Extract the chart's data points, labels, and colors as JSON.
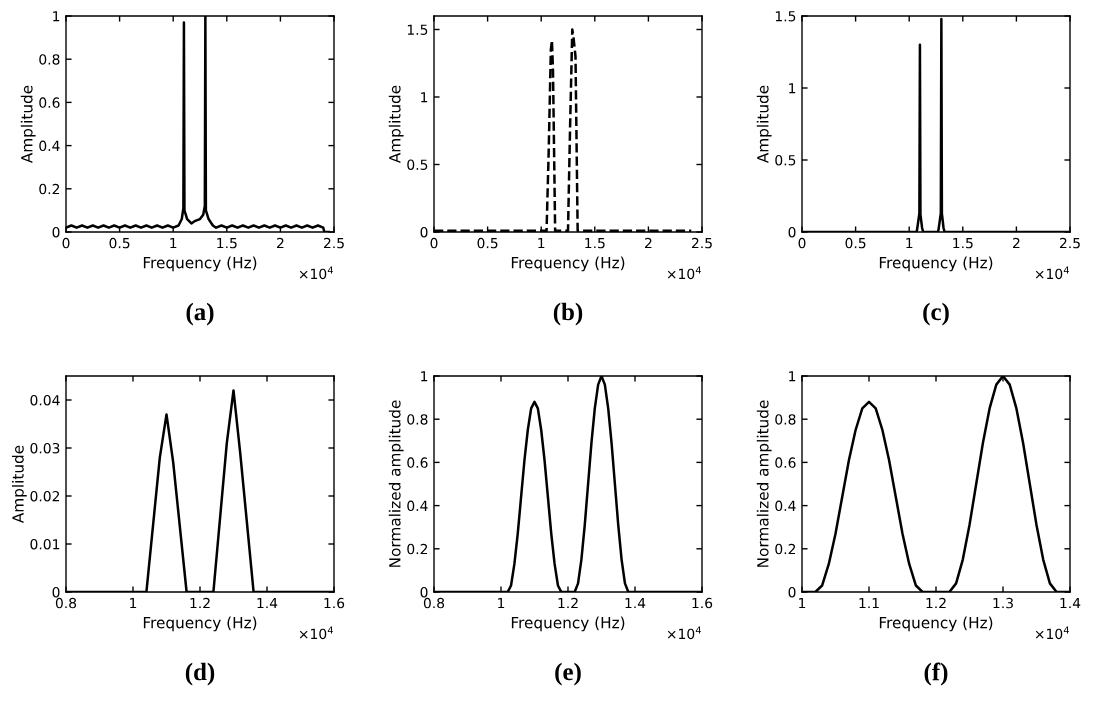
{
  "chart_data": [
    {
      "type": "line",
      "xlabel": "Frequency (Hz)",
      "ylabel": "Amplitude",
      "annotations": [
        "×10$^{4}$",
        "(a)"
      ],
      "xlim": [
        0,
        2.5
      ],
      "ylim": [
        0,
        1
      ],
      "xticks": [
        0,
        0.5,
        1,
        1.5,
        2,
        2.5
      ],
      "yticks": [
        0,
        0.2,
        0.4,
        0.6,
        0.8,
        1
      ],
      "grid": false,
      "marker": "none",
      "line_style": "solid",
      "series": [
        {
          "color": "#000000",
          "x": [
            0,
            0.05,
            0.1,
            0.15,
            0.2,
            0.25,
            0.3,
            0.35,
            0.4,
            0.45,
            0.5,
            0.55,
            0.6,
            0.65,
            0.7,
            0.75,
            0.8,
            0.85,
            0.9,
            0.95,
            1.0,
            1.05,
            1.08,
            1.095,
            1.1,
            1.105,
            1.13,
            1.17,
            1.2,
            1.25,
            1.28,
            1.295,
            1.3,
            1.305,
            1.33,
            1.37,
            1.4,
            1.45,
            1.5,
            1.55,
            1.6,
            1.65,
            1.7,
            1.75,
            1.8,
            1.85,
            1.9,
            1.95,
            2.0,
            2.05,
            2.1,
            2.15,
            2.2,
            2.25,
            2.3,
            2.35,
            2.4,
            2.41,
            2.45
          ],
          "values": [
            0.02,
            0.03,
            0.02,
            0.03,
            0.02,
            0.03,
            0.02,
            0.03,
            0.02,
            0.03,
            0.02,
            0.03,
            0.02,
            0.03,
            0.02,
            0.03,
            0.02,
            0.03,
            0.02,
            0.03,
            0.02,
            0.03,
            0.06,
            0.11,
            0.97,
            0.1,
            0.06,
            0.04,
            0.05,
            0.06,
            0.08,
            0.12,
            1.0,
            0.1,
            0.06,
            0.03,
            0.02,
            0.03,
            0.02,
            0.03,
            0.02,
            0.03,
            0.02,
            0.03,
            0.02,
            0.03,
            0.02,
            0.03,
            0.02,
            0.03,
            0.02,
            0.03,
            0.02,
            0.03,
            0.02,
            0.03,
            0.02,
            0,
            0
          ]
        }
      ]
    },
    {
      "type": "line",
      "xlabel": "Frequency (Hz)",
      "ylabel": "Amplitude",
      "annotations": [
        "×10$^{4}$",
        "(b)"
      ],
      "xlim": [
        0,
        2.5
      ],
      "ylim": [
        0,
        1.6
      ],
      "xticks": [
        0,
        0.5,
        1,
        1.5,
        2,
        2.5
      ],
      "yticks": [
        0,
        0.5,
        1,
        1.5
      ],
      "grid": false,
      "marker": "none",
      "line_style": "dashed",
      "series": [
        {
          "color": "#000000",
          "x": [
            0,
            0.5,
            1.0,
            1.05,
            1.07,
            1.09,
            1.1,
            1.11,
            1.13,
            1.25,
            1.27,
            1.29,
            1.3,
            1.32,
            1.34,
            1.5,
            2.0,
            2.4
          ],
          "values": [
            0.01,
            0.01,
            0.01,
            0.01,
            0.6,
            1.35,
            1.42,
            1.2,
            0.01,
            0.01,
            0.8,
            1.5,
            1.45,
            1.3,
            0.01,
            0.01,
            0.01,
            0.01
          ]
        }
      ]
    },
    {
      "type": "line",
      "xlabel": "Frequency (Hz)",
      "ylabel": "Amplitude",
      "annotations": [
        "×10$^{4}$",
        "(c)"
      ],
      "xlim": [
        0,
        2.5
      ],
      "ylim": [
        0,
        1.5
      ],
      "xticks": [
        0,
        0.5,
        1,
        1.5,
        2,
        2.5
      ],
      "yticks": [
        0,
        0.5,
        1,
        1.5
      ],
      "grid": false,
      "marker": "none",
      "line_style": "solid",
      "series": [
        {
          "color": "#000000",
          "x": [
            0,
            1.07,
            1.08,
            1.095,
            1.1,
            1.105,
            1.12,
            1.13,
            1.27,
            1.28,
            1.295,
            1.3,
            1.305,
            1.32,
            1.33,
            2.5
          ],
          "values": [
            0,
            0,
            0.05,
            0.13,
            1.3,
            0.12,
            0.03,
            0,
            0,
            0.05,
            0.13,
            1.48,
            0.13,
            0.03,
            0,
            0
          ]
        }
      ]
    },
    {
      "type": "line",
      "xlabel": "Frequency (Hz)",
      "ylabel": "Amplitude",
      "annotations": [
        "×10$^{4}$",
        "(d)"
      ],
      "xlim": [
        0.8,
        1.6
      ],
      "ylim": [
        0,
        0.045
      ],
      "xticks": [
        0.8,
        1,
        1.2,
        1.4,
        1.6
      ],
      "yticks": [
        0,
        0.01,
        0.02,
        0.03,
        0.04
      ],
      "grid": false,
      "marker": "none",
      "line_style": "solid",
      "series": [
        {
          "color": "#000000",
          "x": [
            0.8,
            1.04,
            1.08,
            1.1,
            1.12,
            1.16,
            1.24,
            1.28,
            1.3,
            1.32,
            1.36,
            1.6
          ],
          "values": [
            0,
            0,
            0.028,
            0.037,
            0.027,
            0,
            0,
            0.031,
            0.042,
            0.029,
            0,
            0
          ]
        }
      ]
    },
    {
      "type": "line",
      "xlabel": "Frequency (Hz)",
      "ylabel": "Normalized amplitude",
      "annotations": [
        "×10$^{4}$",
        "(e)"
      ],
      "xlim": [
        0.8,
        1.6
      ],
      "ylim": [
        0,
        1
      ],
      "xticks": [
        0.8,
        1,
        1.2,
        1.4,
        1.6
      ],
      "yticks": [
        0,
        0.2,
        0.4,
        0.6,
        0.8,
        1
      ],
      "grid": false,
      "marker": "none",
      "line_style": "solid",
      "series": [
        {
          "color": "#000000",
          "x": [
            0.8,
            1.02,
            1.03,
            1.04,
            1.05,
            1.06,
            1.07,
            1.08,
            1.09,
            1.1,
            1.11,
            1.12,
            1.13,
            1.14,
            1.15,
            1.16,
            1.17,
            1.18,
            1.22,
            1.23,
            1.24,
            1.25,
            1.26,
            1.27,
            1.28,
            1.29,
            1.3,
            1.31,
            1.32,
            1.33,
            1.34,
            1.35,
            1.36,
            1.37,
            1.38,
            1.6
          ],
          "values": [
            0,
            0,
            0.03,
            0.13,
            0.27,
            0.44,
            0.61,
            0.75,
            0.85,
            0.88,
            0.85,
            0.75,
            0.61,
            0.44,
            0.27,
            0.13,
            0.03,
            0,
            0,
            0.04,
            0.15,
            0.31,
            0.5,
            0.69,
            0.85,
            0.96,
            1,
            0.96,
            0.85,
            0.69,
            0.5,
            0.31,
            0.15,
            0.04,
            0,
            0
          ]
        }
      ]
    },
    {
      "type": "line",
      "xlabel": "Frequency (Hz)",
      "ylabel": "Normalized amplitude",
      "annotations": [
        "×10$^{4}$",
        "(f)"
      ],
      "xlim": [
        1,
        1.4
      ],
      "ylim": [
        0,
        1
      ],
      "xticks": [
        1,
        1.1,
        1.2,
        1.3,
        1.4
      ],
      "yticks": [
        0,
        0.2,
        0.4,
        0.6,
        0.8,
        1
      ],
      "grid": false,
      "marker": "none",
      "line_style": "solid",
      "series": [
        {
          "color": "#000000",
          "x": [
            1.0,
            1.02,
            1.03,
            1.04,
            1.05,
            1.06,
            1.07,
            1.08,
            1.09,
            1.1,
            1.11,
            1.12,
            1.13,
            1.14,
            1.15,
            1.16,
            1.17,
            1.18,
            1.22,
            1.23,
            1.24,
            1.25,
            1.26,
            1.27,
            1.28,
            1.29,
            1.3,
            1.31,
            1.32,
            1.33,
            1.34,
            1.35,
            1.36,
            1.37,
            1.38,
            1.4
          ],
          "values": [
            0,
            0,
            0.03,
            0.13,
            0.27,
            0.44,
            0.61,
            0.75,
            0.85,
            0.88,
            0.85,
            0.75,
            0.61,
            0.44,
            0.27,
            0.13,
            0.03,
            0,
            0,
            0.04,
            0.15,
            0.31,
            0.5,
            0.69,
            0.85,
            0.96,
            1,
            0.96,
            0.85,
            0.69,
            0.5,
            0.31,
            0.15,
            0.04,
            0,
            0
          ]
        }
      ]
    }
  ]
}
